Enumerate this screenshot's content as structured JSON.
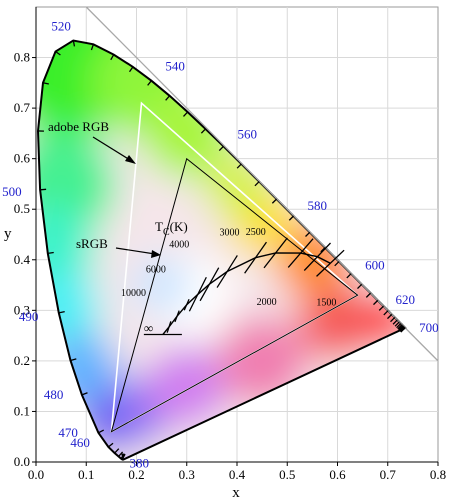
{
  "chart_data": {
    "type": "diagram",
    "xlabel": "x",
    "ylabel": "y",
    "xlim": [
      0,
      0.8
    ],
    "ylim": [
      0,
      0.9
    ],
    "xticks": [
      "0.0",
      "0.1",
      "0.2",
      "0.3",
      "0.4",
      "0.5",
      "0.6",
      "0.7",
      "0.8"
    ],
    "yticks": [
      "0.0",
      "0.1",
      "0.2",
      "0.3",
      "0.4",
      "0.5",
      "0.6",
      "0.7",
      "0.8"
    ],
    "wavelength_labels": [
      {
        "text": "380",
        "x": 0.1741,
        "y": 0.005
      },
      {
        "text": "460",
        "x": 0.144,
        "y": 0.0297
      },
      {
        "text": "470",
        "x": 0.1241,
        "y": 0.0578
      },
      {
        "text": "480",
        "x": 0.0913,
        "y": 0.1327
      },
      {
        "text": "490",
        "x": 0.0454,
        "y": 0.295
      },
      {
        "text": "500",
        "x": 0.0082,
        "y": 0.5384
      },
      {
        "text": "520",
        "x": 0.0743,
        "y": 0.8338
      },
      {
        "text": "540",
        "x": 0.2296,
        "y": 0.7543
      },
      {
        "text": "560",
        "x": 0.3731,
        "y": 0.6245
      },
      {
        "text": "580",
        "x": 0.5125,
        "y": 0.4866
      },
      {
        "text": "600",
        "x": 0.627,
        "y": 0.3725
      },
      {
        "text": "620",
        "x": 0.6915,
        "y": 0.3083
      },
      {
        "text": "700",
        "x": 0.7347,
        "y": 0.2653
      }
    ],
    "adobe_rgb": {
      "label": "adobe RGB",
      "primaries": [
        [
          0.64,
          0.33
        ],
        [
          0.21,
          0.71
        ],
        [
          0.15,
          0.06
        ]
      ],
      "white": [
        0.3127,
        0.329
      ]
    },
    "srgb": {
      "label": "sRGB",
      "primaries": [
        [
          0.64,
          0.33
        ],
        [
          0.3,
          0.6
        ],
        [
          0.15,
          0.06
        ]
      ]
    },
    "planckian": {
      "label_main": "T",
      "label_sub": "C",
      "label_unit": "(K)",
      "infinity": "∞",
      "temps": [
        {
          "text": "1500",
          "x": 0.5857,
          "y": 0.3931
        },
        {
          "text": "2000",
          "x": 0.5267,
          "y": 0.4133
        },
        {
          "text": "2500",
          "x": 0.477,
          "y": 0.4137
        },
        {
          "text": "3000",
          "x": 0.4369,
          "y": 0.4041
        },
        {
          "text": "4000",
          "x": 0.3805,
          "y": 0.3768
        },
        {
          "text": "6000",
          "x": 0.3221,
          "y": 0.3318
        },
        {
          "text": "10000",
          "x": 0.2807,
          "y": 0.2883
        }
      ]
    }
  }
}
